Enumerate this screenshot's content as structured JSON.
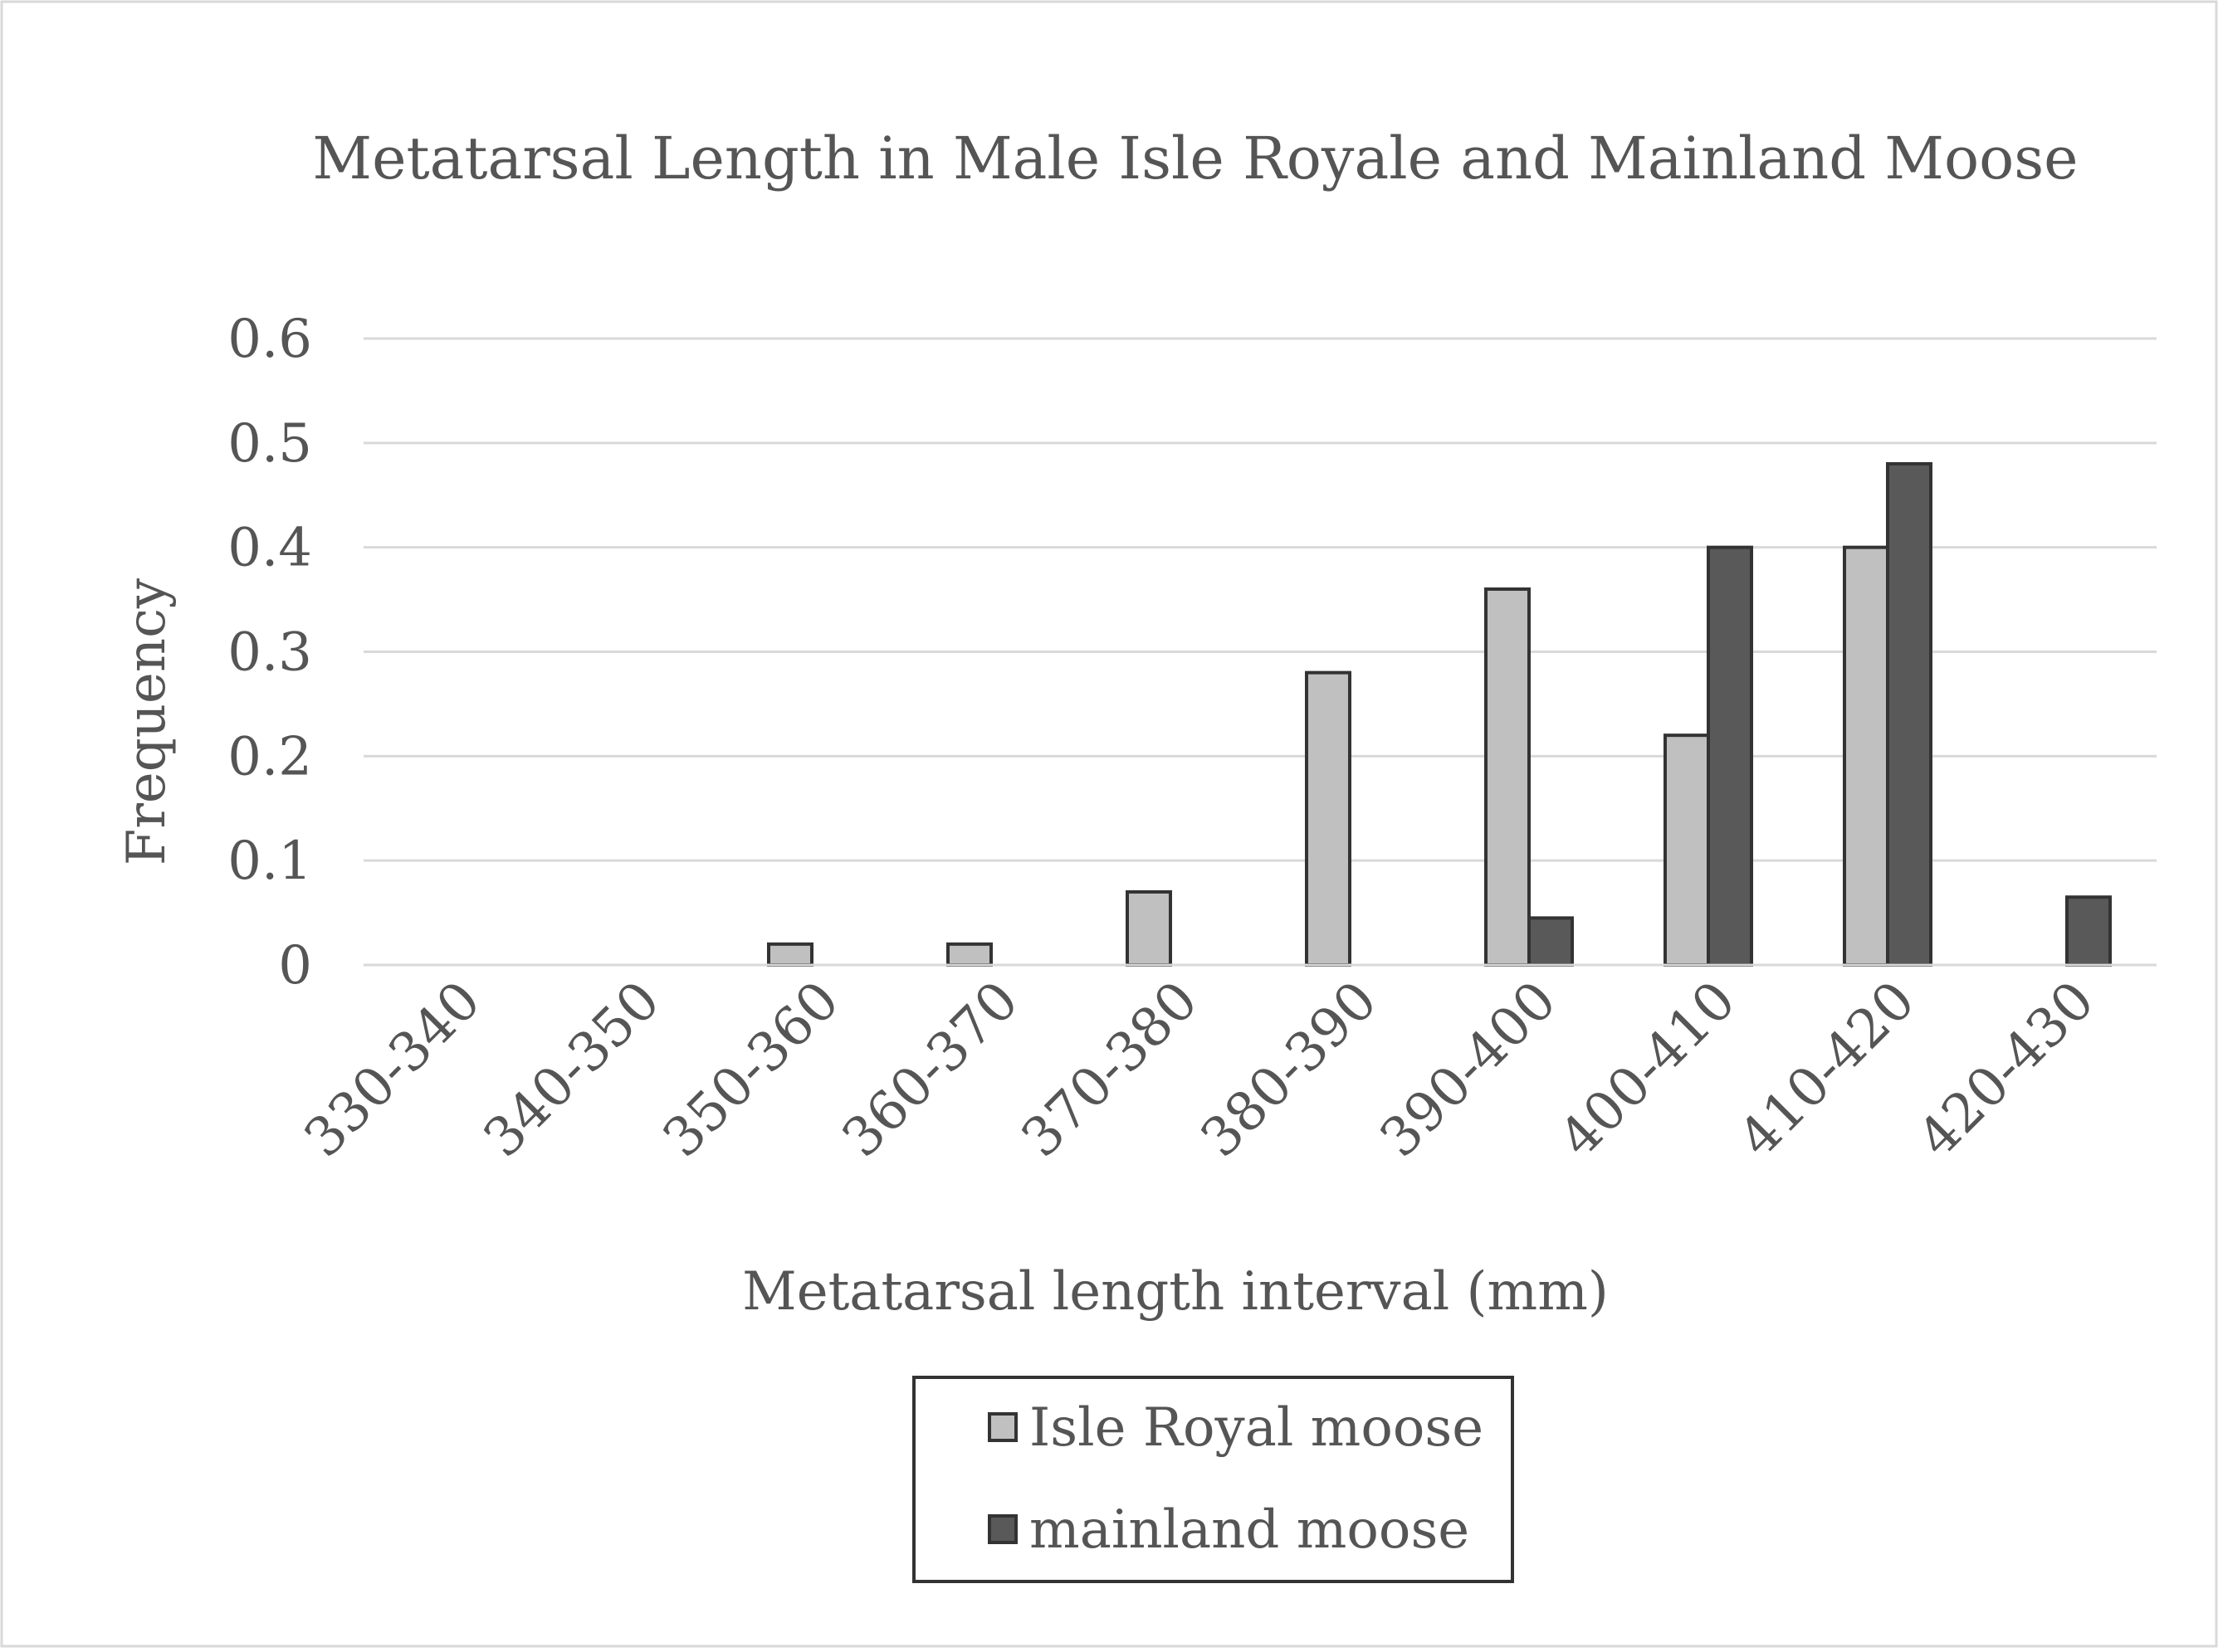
{
  "chart_data": {
    "type": "bar",
    "title": "Metatarsal Length in Male Isle Royale and Mainland Moose",
    "xlabel": "Metatarsal length interval (mm)",
    "ylabel": "Frequency",
    "ylim": [
      0,
      0.6
    ],
    "yticks": [
      "0",
      "0.1",
      "0.2",
      "0.3",
      "0.4",
      "0.5",
      "0.6"
    ],
    "grid": true,
    "legend_position": "bottom",
    "categories": [
      "330-340",
      "340-350",
      "350-360",
      "360-370",
      "370-380",
      "380-390",
      "390-400",
      "400-410",
      "410-420",
      "420-430"
    ],
    "series": [
      {
        "name": "Isle Royal moose",
        "color": "#c0c0c0",
        "values": [
          0,
          0,
          0.02,
          0.02,
          0.07,
          0.28,
          0.36,
          0.22,
          0.4,
          0
        ]
      },
      {
        "name": "mainland moose",
        "color": "#595959",
        "values": [
          0,
          0,
          0,
          0,
          0,
          0,
          0.045,
          0.4,
          0.48,
          0.065
        ]
      }
    ]
  }
}
